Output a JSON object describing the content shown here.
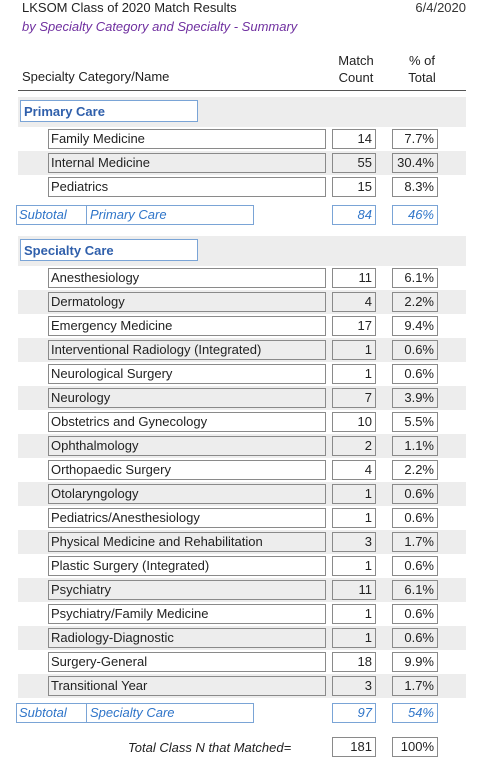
{
  "header": {
    "title": "LKSOM Class of 2020 Match Results",
    "date": "6/4/2020",
    "subtitle": "by Specialty Category and Specialty - Summary"
  },
  "columns": {
    "name": "Specialty Category/Name",
    "count_line1": "Match",
    "count_line2": "Count",
    "pct_line1": "% of",
    "pct_line2": "Total"
  },
  "primary": {
    "label": "Primary Care",
    "rows": [
      {
        "name": "Family Medicine",
        "count": "14",
        "pct": "7.7%"
      },
      {
        "name": "Internal Medicine",
        "count": "55",
        "pct": "30.4%"
      },
      {
        "name": "Pediatrics",
        "count": "15",
        "pct": "8.3%"
      }
    ],
    "subtotal_label": "Subtotal",
    "subtotal_name": "Primary Care",
    "subtotal_count": "84",
    "subtotal_pct": "46%"
  },
  "specialty": {
    "label": "Specialty Care",
    "rows": [
      {
        "name": "Anesthesiology",
        "count": "11",
        "pct": "6.1%"
      },
      {
        "name": "Dermatology",
        "count": "4",
        "pct": "2.2%"
      },
      {
        "name": "Emergency Medicine",
        "count": "17",
        "pct": "9.4%"
      },
      {
        "name": "Interventional Radiology (Integrated)",
        "count": "1",
        "pct": "0.6%"
      },
      {
        "name": "Neurological Surgery",
        "count": "1",
        "pct": "0.6%"
      },
      {
        "name": "Neurology",
        "count": "7",
        "pct": "3.9%"
      },
      {
        "name": "Obstetrics and Gynecology",
        "count": "10",
        "pct": "5.5%"
      },
      {
        "name": "Ophthalmology",
        "count": "2",
        "pct": "1.1%"
      },
      {
        "name": "Orthopaedic Surgery",
        "count": "4",
        "pct": "2.2%"
      },
      {
        "name": "Otolaryngology",
        "count": "1",
        "pct": "0.6%"
      },
      {
        "name": "Pediatrics/Anesthesiology",
        "count": "1",
        "pct": "0.6%"
      },
      {
        "name": "Physical Medicine and Rehabilitation",
        "count": "3",
        "pct": "1.7%"
      },
      {
        "name": "Plastic Surgery (Integrated)",
        "count": "1",
        "pct": "0.6%"
      },
      {
        "name": "Psychiatry",
        "count": "11",
        "pct": "6.1%"
      },
      {
        "name": "Psychiatry/Family Medicine",
        "count": "1",
        "pct": "0.6%"
      },
      {
        "name": "Radiology-Diagnostic",
        "count": "1",
        "pct": "0.6%"
      },
      {
        "name": "Surgery-General",
        "count": "18",
        "pct": "9.9%"
      },
      {
        "name": "Transitional Year",
        "count": "3",
        "pct": "1.7%"
      }
    ],
    "subtotal_label": "Subtotal",
    "subtotal_name": "Specialty Care",
    "subtotal_count": "97",
    "subtotal_pct": "54%"
  },
  "total": {
    "label": "Total Class N that Matched=",
    "count": "181",
    "pct": "100%"
  }
}
